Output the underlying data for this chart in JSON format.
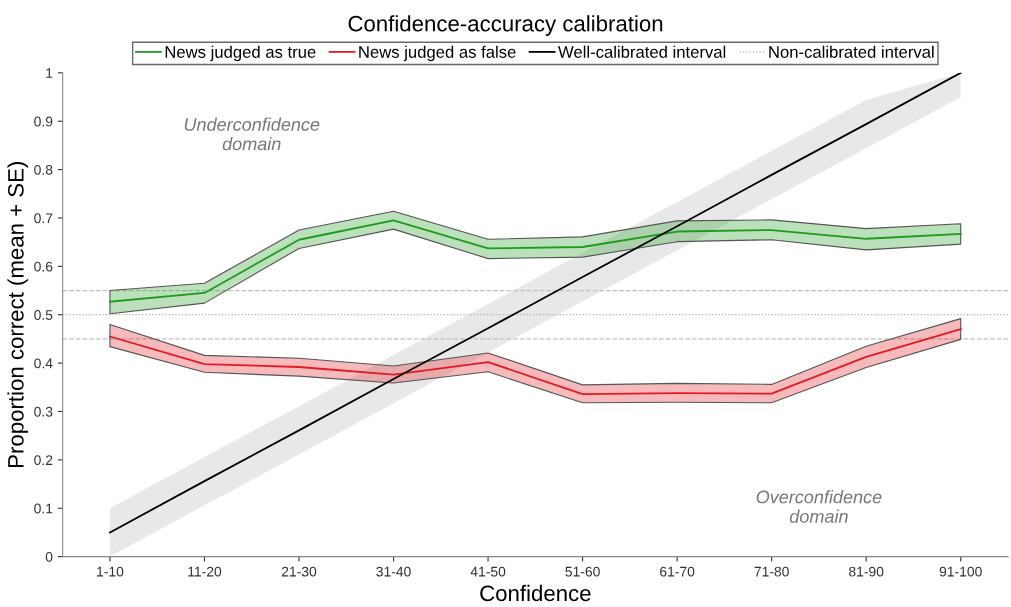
{
  "chart_data": {
    "type": "line",
    "title": "Confidence-accuracy calibration",
    "xlabel": "Confidence",
    "ylabel": "Proportion correct (mean + SE)",
    "categories": [
      "1-10",
      "11-20",
      "21-30",
      "31-40",
      "41-50",
      "51-60",
      "61-70",
      "71-80",
      "81-90",
      "91-100"
    ],
    "series": [
      {
        "name": "News judged as true",
        "color": "#1e9a1e",
        "values": [
          0.527,
          0.545,
          0.655,
          0.695,
          0.637,
          0.64,
          0.672,
          0.675,
          0.657,
          0.667
        ],
        "lower": [
          0.502,
          0.524,
          0.637,
          0.677,
          0.616,
          0.619,
          0.651,
          0.655,
          0.634,
          0.646
        ],
        "upper": [
          0.55,
          0.565,
          0.675,
          0.714,
          0.656,
          0.661,
          0.694,
          0.696,
          0.678,
          0.688
        ]
      },
      {
        "name": "News judged as false",
        "color": "#e41a22",
        "values": [
          0.455,
          0.398,
          0.392,
          0.376,
          0.402,
          0.336,
          0.338,
          0.337,
          0.413,
          0.47
        ],
        "lower": [
          0.434,
          0.381,
          0.373,
          0.359,
          0.382,
          0.318,
          0.319,
          0.318,
          0.391,
          0.449
        ],
        "upper": [
          0.48,
          0.416,
          0.41,
          0.394,
          0.421,
          0.355,
          0.358,
          0.356,
          0.435,
          0.492
        ]
      },
      {
        "name": "Well-calibrated interval",
        "color": "#000000",
        "values": [
          0.05,
          0.156,
          0.261,
          0.367,
          0.472,
          0.578,
          0.683,
          0.789,
          0.894,
          1.0
        ],
        "lower": [
          0.0,
          0.106,
          0.211,
          0.317,
          0.422,
          0.528,
          0.633,
          0.739,
          0.844,
          0.95
        ],
        "upper": [
          0.1,
          0.206,
          0.311,
          0.417,
          0.522,
          0.628,
          0.733,
          0.839,
          0.944,
          1.0
        ]
      }
    ],
    "ref_lines": [
      {
        "axis": "y",
        "value": 0.5,
        "label": "Non-calibrated interval",
        "color": "#b0b0b0",
        "line_style": "dotted"
      },
      {
        "axis": "y",
        "value": 0.55,
        "color": "#c0c0c0",
        "line_style": "dashed"
      },
      {
        "axis": "y",
        "value": 0.45,
        "color": "#c0c0c0",
        "line_style": "dashed"
      }
    ],
    "annotations": [
      "Underconfidence\ndomain",
      "Overconfidence\ndomain"
    ],
    "ylim": [
      0,
      1
    ],
    "yticks": [
      0,
      0.1,
      0.2,
      0.3,
      0.4,
      0.5,
      0.6,
      0.7,
      0.8,
      0.9,
      1
    ],
    "grid": false,
    "legend": "top",
    "marker": "none",
    "line_style": "solid"
  }
}
